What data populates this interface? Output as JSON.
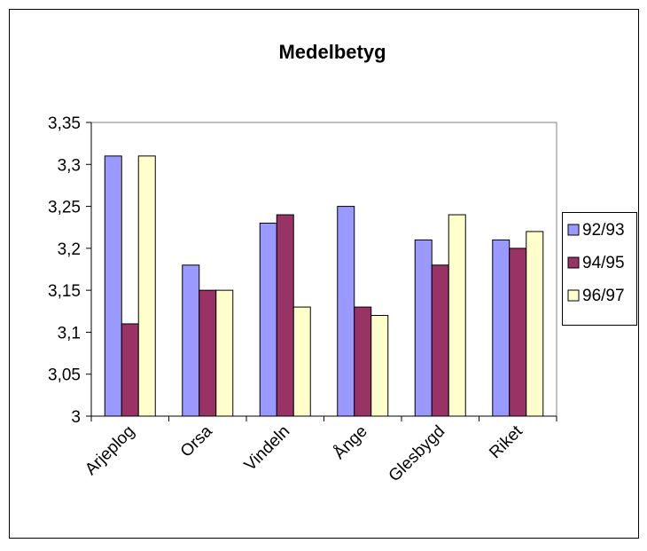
{
  "chart_data": {
    "type": "bar",
    "title": "Medelbetyg",
    "xlabel": "",
    "ylabel": "",
    "categories": [
      "Arjeplog",
      "Orsa",
      "Vindeln",
      "Ånge",
      "Glesbygd",
      "Riket"
    ],
    "series": [
      {
        "name": "92/93",
        "color": "#9999ff",
        "values": [
          3.31,
          3.18,
          3.23,
          3.25,
          3.21,
          3.21
        ]
      },
      {
        "name": "94/95",
        "color": "#993366",
        "values": [
          3.11,
          3.15,
          3.24,
          3.13,
          3.18,
          3.2
        ]
      },
      {
        "name": "96/97",
        "color": "#ffffcc",
        "values": [
          3.31,
          3.15,
          3.13,
          3.12,
          3.24,
          3.22
        ]
      }
    ],
    "ylim": [
      3,
      3.35
    ],
    "yticks": [
      3,
      3.05,
      3.1,
      3.15,
      3.2,
      3.25,
      3.3,
      3.35
    ],
    "ytick_labels": [
      "3",
      "3,05",
      "3,1",
      "3,15",
      "3,2",
      "3,25",
      "3,3",
      "3,35"
    ],
    "grid": false,
    "legend_position": "right"
  }
}
